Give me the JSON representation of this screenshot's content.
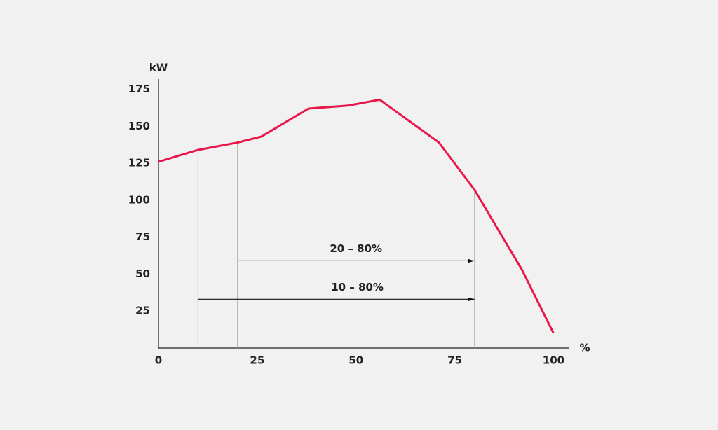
{
  "chart_data": {
    "type": "line",
    "y_label": "kW",
    "x_label": "%",
    "x": [
      0,
      10,
      20,
      26,
      38,
      48,
      56,
      71,
      80,
      92,
      100
    ],
    "series": [
      {
        "color": "#e8174a",
        "values": [
          126,
          134,
          139,
          143,
          162,
          164,
          168,
          139,
          107,
          53,
          10
        ]
      }
    ],
    "xlim": [
      0,
      104
    ],
    "ylim": [
      0,
      180
    ],
    "xticks": [
      0,
      25,
      50,
      75,
      100
    ],
    "yticks": [
      25,
      50,
      75,
      100,
      125,
      150,
      175
    ],
    "guide_lines": [
      {
        "x": 10,
        "y": 134
      },
      {
        "x": 20,
        "y": 139
      },
      {
        "x": 80,
        "y": 107
      }
    ],
    "annotations": [
      {
        "label": "20 – 80%",
        "x_start": 20,
        "x_end": 80,
        "y": 59
      },
      {
        "label": "10 – 80%",
        "x_start": 10,
        "x_end": 80,
        "y": 33
      }
    ]
  }
}
